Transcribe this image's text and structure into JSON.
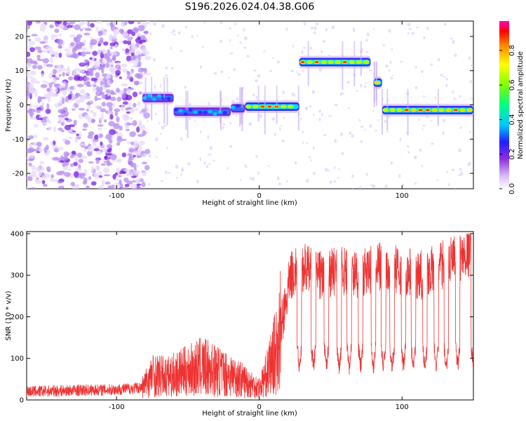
{
  "title": "S196.2026.024.04.38.G06",
  "chart_data": [
    {
      "type": "heatmap",
      "xlabel": "Height of straight line (km)",
      "ylabel": "Frequency (Hz)",
      "xlim": [
        -163,
        150
      ],
      "ylim": [
        -24.5,
        24.5
      ],
      "x_ticks": [
        -100,
        0,
        100
      ],
      "y_ticks": [
        20,
        10,
        0,
        -10,
        -20
      ],
      "colorbar": {
        "label": "Normalized spectral amplitude",
        "range": [
          0,
          0.97
        ],
        "ticks": [
          0,
          0.2,
          0.4,
          0.6,
          0.8
        ],
        "tick_labels": [
          "0.0",
          "0.2",
          "0.4",
          "0.6",
          "0.8"
        ]
      },
      "signal_track": [
        {
          "x0": -82,
          "x1": -60,
          "f": 2
        },
        {
          "x0": -60,
          "x1": -20,
          "f": -2
        },
        {
          "x0": -20,
          "x1": -10,
          "f": -1
        },
        {
          "x0": -10,
          "x1": 28,
          "f": -0.5
        },
        {
          "x0": 28,
          "x1": 78,
          "f": 12.5
        },
        {
          "x0": 80,
          "x1": 86,
          "f": 6.5
        },
        {
          "x0": 86,
          "x1": 150,
          "f": -1.5
        }
      ],
      "colors": {
        "low": "#8a2be2",
        "mid": "#00cfff",
        "high": "#ff2020"
      }
    },
    {
      "type": "line",
      "xlabel": "Height of straight line (km)",
      "ylabel": "SNR (10 * v/v)",
      "xlim": [
        -163,
        150
      ],
      "ylim": [
        0,
        405
      ],
      "x_ticks": [
        -100,
        0,
        100
      ],
      "y_ticks": [
        0,
        100,
        200,
        300,
        400
      ],
      "color": "#ee3333",
      "trend": [
        {
          "x": -163,
          "y": 20
        },
        {
          "x": -140,
          "y": 22
        },
        {
          "x": -120,
          "y": 24
        },
        {
          "x": -100,
          "y": 25
        },
        {
          "x": -82,
          "y": 30
        },
        {
          "x": -75,
          "y": 60
        },
        {
          "x": -65,
          "y": 55
        },
        {
          "x": -50,
          "y": 70
        },
        {
          "x": -40,
          "y": 80
        },
        {
          "x": -30,
          "y": 70
        },
        {
          "x": -20,
          "y": 60
        },
        {
          "x": -10,
          "y": 45
        },
        {
          "x": 0,
          "y": 30
        },
        {
          "x": 5,
          "y": 60
        },
        {
          "x": 12,
          "y": 120
        },
        {
          "x": 18,
          "y": 220
        },
        {
          "x": 22,
          "y": 300
        },
        {
          "x": 30,
          "y": 320
        },
        {
          "x": 40,
          "y": 300
        },
        {
          "x": 55,
          "y": 310
        },
        {
          "x": 70,
          "y": 300
        },
        {
          "x": 85,
          "y": 320
        },
        {
          "x": 100,
          "y": 310
        },
        {
          "x": 115,
          "y": 300
        },
        {
          "x": 125,
          "y": 320
        },
        {
          "x": 140,
          "y": 340
        },
        {
          "x": 150,
          "y": 360
        }
      ],
      "dips": [
        28,
        38,
        47,
        56,
        63,
        71,
        80,
        87,
        93,
        101,
        108,
        116,
        124,
        131,
        139,
        150
      ]
    }
  ]
}
